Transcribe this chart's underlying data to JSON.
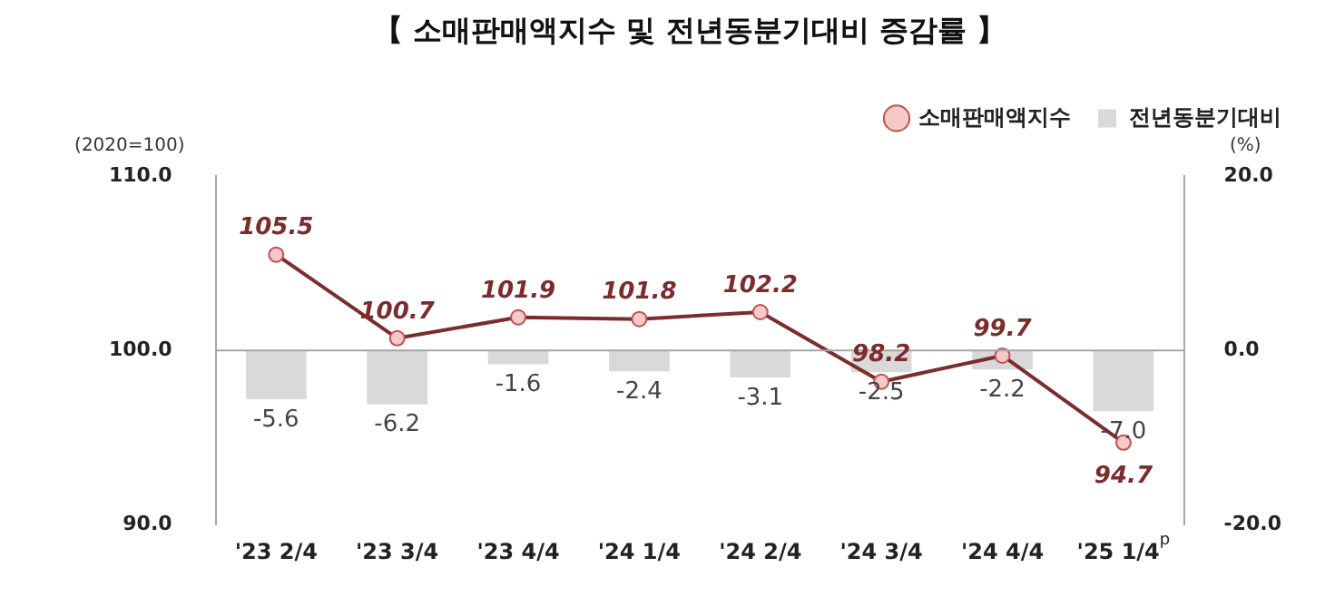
{
  "chart_data": {
    "type": "bar",
    "title": "【 소매판매액지수 및 전년동분기대비 증감률 】",
    "ylabel": "(2020=100)",
    "y2label": "(%)",
    "categories": [
      "'23 2/4",
      "'23 3/4",
      "'23 4/4",
      "'24 1/4",
      "'24 2/4",
      "'24 3/4",
      "'24 4/4",
      "'25 1/4$^{p}$"
    ],
    "series": [
      {
        "name": "소매판매액지수",
        "type": "line",
        "color": "#7b2c2c",
        "values": [
          105.5,
          100.7,
          101.9,
          101.8,
          102.2,
          98.2,
          99.7,
          94.7
        ],
        "value_labels": [
          "105.5",
          "100.7",
          "101.9",
          "101.8",
          "102.2",
          "98.2",
          "99.7",
          "94.7"
        ]
      },
      {
        "name": "전년동분기대비",
        "axis": "y2",
        "color": "#d9d9d9",
        "values": [
          -5.6,
          -6.2,
          -1.6,
          -2.4,
          -3.1,
          -2.5,
          -2.2,
          -7.0
        ],
        "value_labels": [
          "-5.6",
          "-6.2",
          "-1.6",
          "-2.4",
          "-3.1",
          "-2.5",
          "-2.2",
          "-7.0"
        ]
      }
    ],
    "ylim": [
      90,
      110
    ],
    "yticks": [
      {
        "value": 90,
        "label": "90.0"
      },
      {
        "value": 100,
        "label": "100.0"
      },
      {
        "value": 110,
        "label": "110.0"
      }
    ],
    "y2lim": [
      -20,
      20
    ],
    "y2ticks": [
      {
        "value": -20,
        "label": "-20.0"
      },
      {
        "value": 0,
        "label": "0.0"
      },
      {
        "value": 20,
        "label": "20.0"
      }
    ],
    "ref_lines": [
      {
        "axis": "y2",
        "value": 0,
        "color": "#a6a6a6"
      }
    ],
    "legend": "top right",
    "marker": "circle",
    "grid": false
  }
}
